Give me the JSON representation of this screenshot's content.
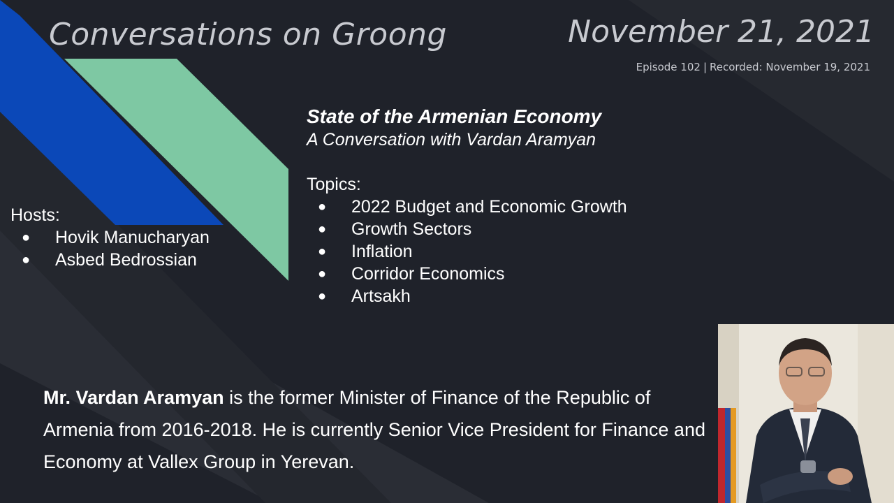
{
  "header": {
    "show_title": "Conversations on Groong",
    "date": "November 21, 2021",
    "episode": "Episode 102",
    "separator": "|",
    "recorded": "Recorded: November 19, 2021"
  },
  "topic": {
    "title": "State of the Armenian Economy",
    "subtitle": "A Conversation with Vardan Aramyan",
    "heading": "Topics:",
    "items": [
      "2022 Budget and Economic Growth",
      "Growth Sectors",
      "Inflation",
      "Corridor Economics",
      "Artsakh"
    ]
  },
  "hosts": {
    "heading": "Hosts:",
    "items": [
      "Hovik Manucharyan",
      "Asbed Bedrossian"
    ]
  },
  "bio": {
    "name": "Mr. Vardan Aramyan",
    "text": " is the former Minister of Finance of the Republic of Armenia from 2016-2018. He is currently Senior Vice President for Finance and Economy at Vallex Group in Yerevan."
  },
  "bullet_glyph": "●",
  "colors": {
    "background": "#1f222a",
    "blue_stripe": "#0b48b8",
    "green_stripe": "#7ec8a3",
    "title_text": "#c8cad0",
    "body_text": "#ffffff"
  }
}
